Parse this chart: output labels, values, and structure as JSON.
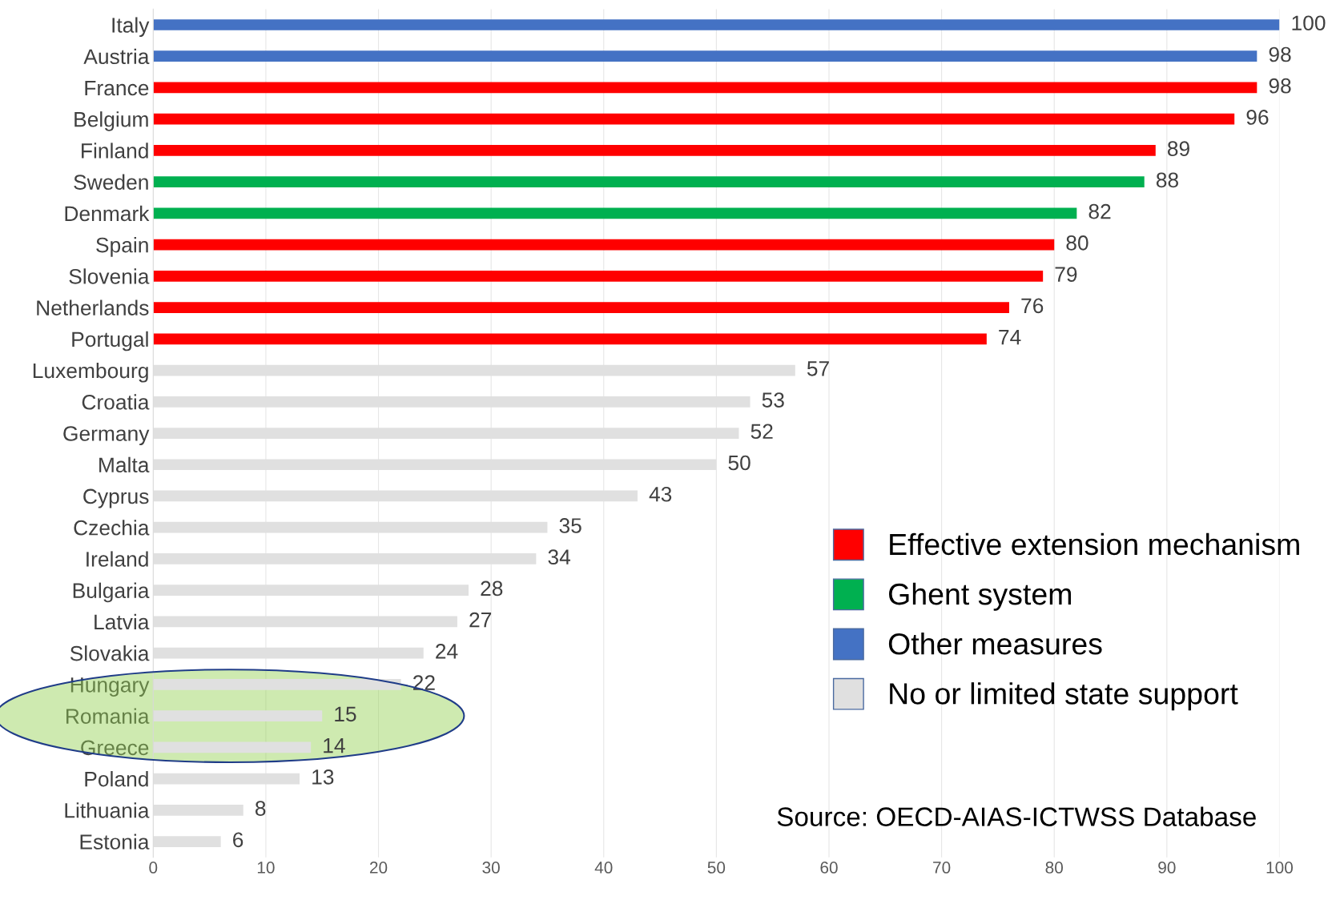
{
  "chart_data": {
    "type": "bar",
    "orientation": "horizontal",
    "categories": [
      "Italy",
      "Austria",
      "France",
      "Belgium",
      "Finland",
      "Sweden",
      "Denmark",
      "Spain",
      "Slovenia",
      "Netherlands",
      "Portugal",
      "Luxembourg",
      "Croatia",
      "Germany",
      "Malta",
      "Cyprus",
      "Czechia",
      "Ireland",
      "Bulgaria",
      "Latvia",
      "Slovakia",
      "Hungary",
      "Romania",
      "Greece",
      "Poland",
      "Lithuania",
      "Estonia"
    ],
    "series": [
      {
        "name": "Effective extension mechanism",
        "color": "#ff0000",
        "values": [
          null,
          null,
          98,
          96,
          89,
          null,
          null,
          80,
          79,
          76,
          74,
          null,
          null,
          null,
          null,
          null,
          null,
          null,
          null,
          null,
          null,
          null,
          null,
          null,
          null,
          null,
          null
        ]
      },
      {
        "name": "Ghent system",
        "color": "#00b050",
        "values": [
          null,
          null,
          null,
          null,
          null,
          88,
          82,
          null,
          null,
          null,
          null,
          null,
          null,
          null,
          null,
          null,
          null,
          null,
          null,
          null,
          null,
          null,
          null,
          null,
          null,
          null,
          null
        ]
      },
      {
        "name": "Other measures",
        "color": "#4472c4",
        "values": [
          100,
          98,
          null,
          null,
          null,
          null,
          null,
          null,
          null,
          null,
          null,
          null,
          null,
          null,
          null,
          null,
          null,
          null,
          null,
          null,
          null,
          null,
          null,
          null,
          null,
          null,
          null
        ]
      },
      {
        "name": "No or limited state support",
        "color": "#e0e0e0",
        "values": [
          null,
          null,
          null,
          null,
          null,
          null,
          null,
          null,
          null,
          null,
          null,
          57,
          53,
          52,
          50,
          43,
          35,
          34,
          28,
          27,
          24,
          22,
          15,
          14,
          13,
          8,
          6
        ]
      }
    ],
    "xlim": [
      0,
      100
    ],
    "xticks": [
      0,
      10,
      20,
      30,
      40,
      50,
      60,
      70,
      80,
      90,
      100
    ],
    "grid": "x",
    "legend": "right",
    "data_labels": true,
    "annotations": [
      "Source: OECD-AIAS-ICTWSS Database"
    ]
  }
}
